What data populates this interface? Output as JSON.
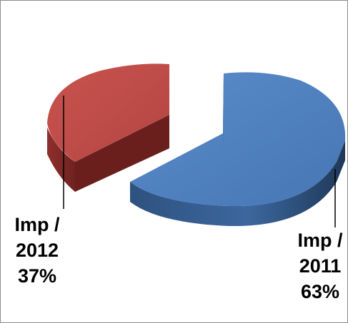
{
  "chart_data": {
    "type": "pie",
    "style": "3d-exploded",
    "slices": [
      {
        "name_lines": [
          "Imp /",
          "2011"
        ],
        "value": 63,
        "percent_label": "63%",
        "color": "#4f81bd"
      },
      {
        "name_lines": [
          "Imp /",
          "2012"
        ],
        "value": 37,
        "percent_label": "37%",
        "color": "#c0504d"
      }
    ],
    "legend": "none"
  }
}
